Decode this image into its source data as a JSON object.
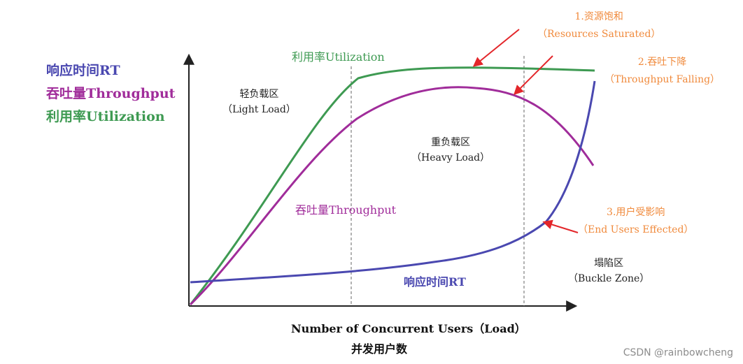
{
  "legend": {
    "items": [
      {
        "label": "响应时间RT",
        "color": "#4a48b0"
      },
      {
        "label": "吞吐量Throughput",
        "color": "#a02c9a"
      },
      {
        "label": "利用率Utilization",
        "color": "#3e9a52"
      }
    ]
  },
  "curve_labels": {
    "utilization": "利用率Utilization",
    "throughput": "吞吐量Throughput",
    "response_time": "响应时间RT"
  },
  "zones": {
    "light": {
      "zh": "轻负载区",
      "en": "（Light Load）"
    },
    "heavy": {
      "zh": "重负载区",
      "en": "（Heavy Load）"
    },
    "buckle": {
      "zh": "塌陷区",
      "en": "（Buckle Zone）"
    }
  },
  "annotations": {
    "note1": {
      "zh": "1.资源饱和",
      "en": "（Resources Saturated）"
    },
    "note2": {
      "zh": "2.吞吐下降",
      "en": "（Throughput Falling）"
    },
    "note3": {
      "zh": "3.用户受影响",
      "en": "（End Users Effected）"
    }
  },
  "x_axis": {
    "title_en": "Number of Concurrent Users（Load）",
    "title_zh": "并发用户数"
  },
  "watermark": "CSDN @rainbowcheng",
  "colors": {
    "response_time": "#4a48b0",
    "throughput": "#a02c9a",
    "utilization": "#3e9a52",
    "annotation": "#f08a3c",
    "arrow": "#e3262a",
    "axis": "#222222"
  }
}
